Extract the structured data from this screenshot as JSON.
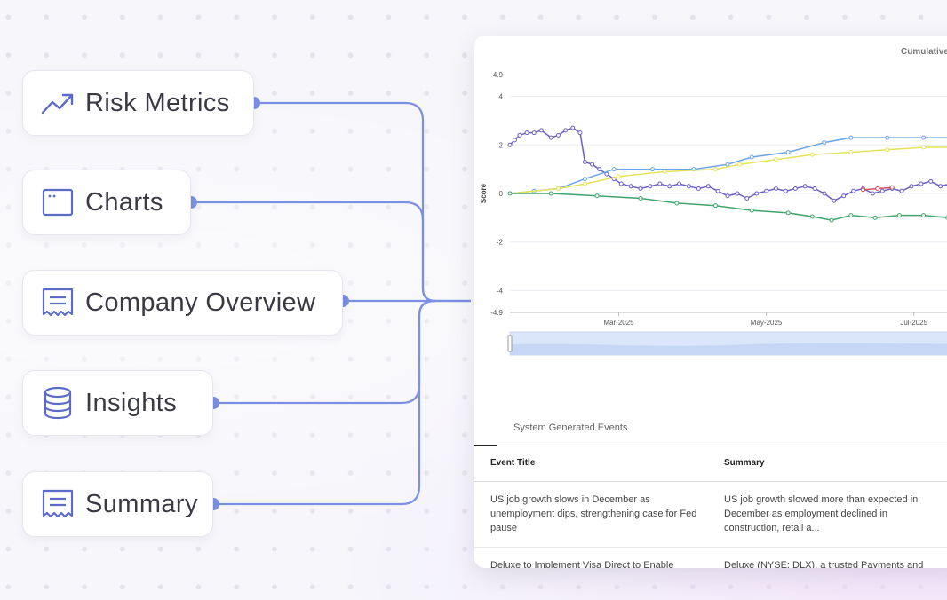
{
  "nav": [
    {
      "label": "Risk Metrics",
      "icon": "trending-up-icon"
    },
    {
      "label": "Charts",
      "icon": "browser-window-icon"
    },
    {
      "label": "Company Overview",
      "icon": "document-icon"
    },
    {
      "label": "Insights",
      "icon": "database-icon"
    },
    {
      "label": "Summary",
      "icon": "document-icon"
    }
  ],
  "colors": {
    "accent": "#7b8fe3",
    "icon": "#5b6bc9",
    "text": "#3a3a44"
  },
  "panel": {
    "chart_title": "Cumulative",
    "events_tab": "System Generated Events",
    "table": {
      "columns": [
        "Event Title",
        "Summary"
      ],
      "rows": [
        [
          "US job growth slows in December as unemployment dips, strengthening case for Fed pause",
          "US job growth slowed more than expected in December as employment declined in construction, retail a..."
        ],
        [
          "Deluxe to Implement Visa Direct to Enable",
          "Deluxe (NYSE: DLX), a trusted Payments and"
        ]
      ]
    }
  },
  "chart_data": {
    "type": "line",
    "title": "Cumulative",
    "ylabel": "Score",
    "xlabel": "",
    "ylim": [
      -4.9,
      4.9
    ],
    "yticks": [
      4.9,
      4,
      2,
      0,
      -2,
      -4,
      -4.9
    ],
    "x_ticks": [
      "Mar-2025",
      "May-2025",
      "Jul-2025"
    ],
    "x_range": [
      "2025-01-15",
      "2025-07-25"
    ],
    "grid": true,
    "legend": "none",
    "series": [
      {
        "color": "#6a5fc7",
        "points": [
          [
            "2025-01-15",
            2.0
          ],
          [
            "2025-01-17",
            2.2
          ],
          [
            "2025-01-19",
            2.4
          ],
          [
            "2025-01-22",
            2.5
          ],
          [
            "2025-01-25",
            2.5
          ],
          [
            "2025-01-28",
            2.6
          ],
          [
            "2025-02-01",
            2.3
          ],
          [
            "2025-02-04",
            2.4
          ],
          [
            "2025-02-07",
            2.6
          ],
          [
            "2025-02-10",
            2.7
          ],
          [
            "2025-02-13",
            2.5
          ],
          [
            "2025-02-15",
            1.3
          ],
          [
            "2025-02-18",
            1.2
          ],
          [
            "2025-02-21",
            1.0
          ],
          [
            "2025-02-24",
            0.8
          ],
          [
            "2025-02-27",
            0.6
          ],
          [
            "2025-03-02",
            0.4
          ],
          [
            "2025-03-06",
            0.3
          ],
          [
            "2025-03-10",
            0.2
          ],
          [
            "2025-03-14",
            0.3
          ],
          [
            "2025-03-18",
            0.4
          ],
          [
            "2025-03-22",
            0.3
          ],
          [
            "2025-03-26",
            0.4
          ],
          [
            "2025-03-30",
            0.3
          ],
          [
            "2025-04-03",
            0.2
          ],
          [
            "2025-04-07",
            0.3
          ],
          [
            "2025-04-11",
            0.1
          ],
          [
            "2025-04-15",
            -0.1
          ],
          [
            "2025-04-19",
            0.0
          ],
          [
            "2025-04-23",
            -0.2
          ],
          [
            "2025-04-27",
            0.0
          ],
          [
            "2025-05-01",
            0.1
          ],
          [
            "2025-05-05",
            0.2
          ],
          [
            "2025-05-09",
            0.1
          ],
          [
            "2025-05-13",
            0.2
          ],
          [
            "2025-05-17",
            0.3
          ],
          [
            "2025-05-21",
            0.2
          ],
          [
            "2025-05-25",
            0.0
          ],
          [
            "2025-05-29",
            -0.3
          ],
          [
            "2025-06-02",
            -0.1
          ],
          [
            "2025-06-06",
            0.1
          ],
          [
            "2025-06-10",
            0.2
          ],
          [
            "2025-06-14",
            0.0
          ],
          [
            "2025-06-18",
            0.1
          ],
          [
            "2025-06-22",
            0.2
          ],
          [
            "2025-06-26",
            0.1
          ],
          [
            "2025-06-30",
            0.3
          ],
          [
            "2025-07-04",
            0.4
          ],
          [
            "2025-07-08",
            0.5
          ],
          [
            "2025-07-12",
            0.3
          ],
          [
            "2025-07-16",
            0.4
          ],
          [
            "2025-07-20",
            0.2
          ],
          [
            "2025-07-25",
            0.5
          ]
        ]
      },
      {
        "color": "#d94f5c",
        "points": [
          [
            "2025-06-10",
            0.15
          ],
          [
            "2025-06-16",
            0.2
          ],
          [
            "2025-06-22",
            0.25
          ]
        ]
      },
      {
        "color": "#6aa3e8",
        "points": [
          [
            "2025-01-15",
            0.0
          ],
          [
            "2025-01-25",
            0.1
          ],
          [
            "2025-02-04",
            0.2
          ],
          [
            "2025-02-15",
            0.6
          ],
          [
            "2025-02-27",
            1.0
          ],
          [
            "2025-03-15",
            1.0
          ],
          [
            "2025-04-01",
            1.0
          ],
          [
            "2025-04-15",
            1.2
          ],
          [
            "2025-04-25",
            1.5
          ],
          [
            "2025-05-10",
            1.7
          ],
          [
            "2025-05-25",
            2.1
          ],
          [
            "2025-06-05",
            2.3
          ],
          [
            "2025-06-20",
            2.3
          ],
          [
            "2025-07-05",
            2.3
          ],
          [
            "2025-07-25",
            2.3
          ]
        ]
      },
      {
        "color": "#e6e35a",
        "points": [
          [
            "2025-01-15",
            0.0
          ],
          [
            "2025-02-04",
            0.2
          ],
          [
            "2025-02-15",
            0.4
          ],
          [
            "2025-03-01",
            0.7
          ],
          [
            "2025-03-20",
            0.9
          ],
          [
            "2025-04-10",
            1.0
          ],
          [
            "2025-04-20",
            1.2
          ],
          [
            "2025-05-05",
            1.4
          ],
          [
            "2025-05-20",
            1.6
          ],
          [
            "2025-06-05",
            1.7
          ],
          [
            "2025-06-20",
            1.8
          ],
          [
            "2025-07-05",
            1.9
          ],
          [
            "2025-07-25",
            1.9
          ]
        ]
      },
      {
        "color": "#3fa56b",
        "points": [
          [
            "2025-01-15",
            0.0
          ],
          [
            "2025-02-01",
            0.0
          ],
          [
            "2025-02-20",
            -0.1
          ],
          [
            "2025-03-10",
            -0.2
          ],
          [
            "2025-03-25",
            -0.4
          ],
          [
            "2025-04-10",
            -0.5
          ],
          [
            "2025-04-25",
            -0.7
          ],
          [
            "2025-05-10",
            -0.8
          ],
          [
            "2025-05-20",
            -0.95
          ],
          [
            "2025-05-28",
            -1.1
          ],
          [
            "2025-06-05",
            -0.9
          ],
          [
            "2025-06-15",
            -1.0
          ],
          [
            "2025-06-25",
            -0.9
          ],
          [
            "2025-07-05",
            -0.9
          ],
          [
            "2025-07-15",
            -1.0
          ],
          [
            "2025-07-25",
            -1.0
          ]
        ]
      }
    ]
  }
}
